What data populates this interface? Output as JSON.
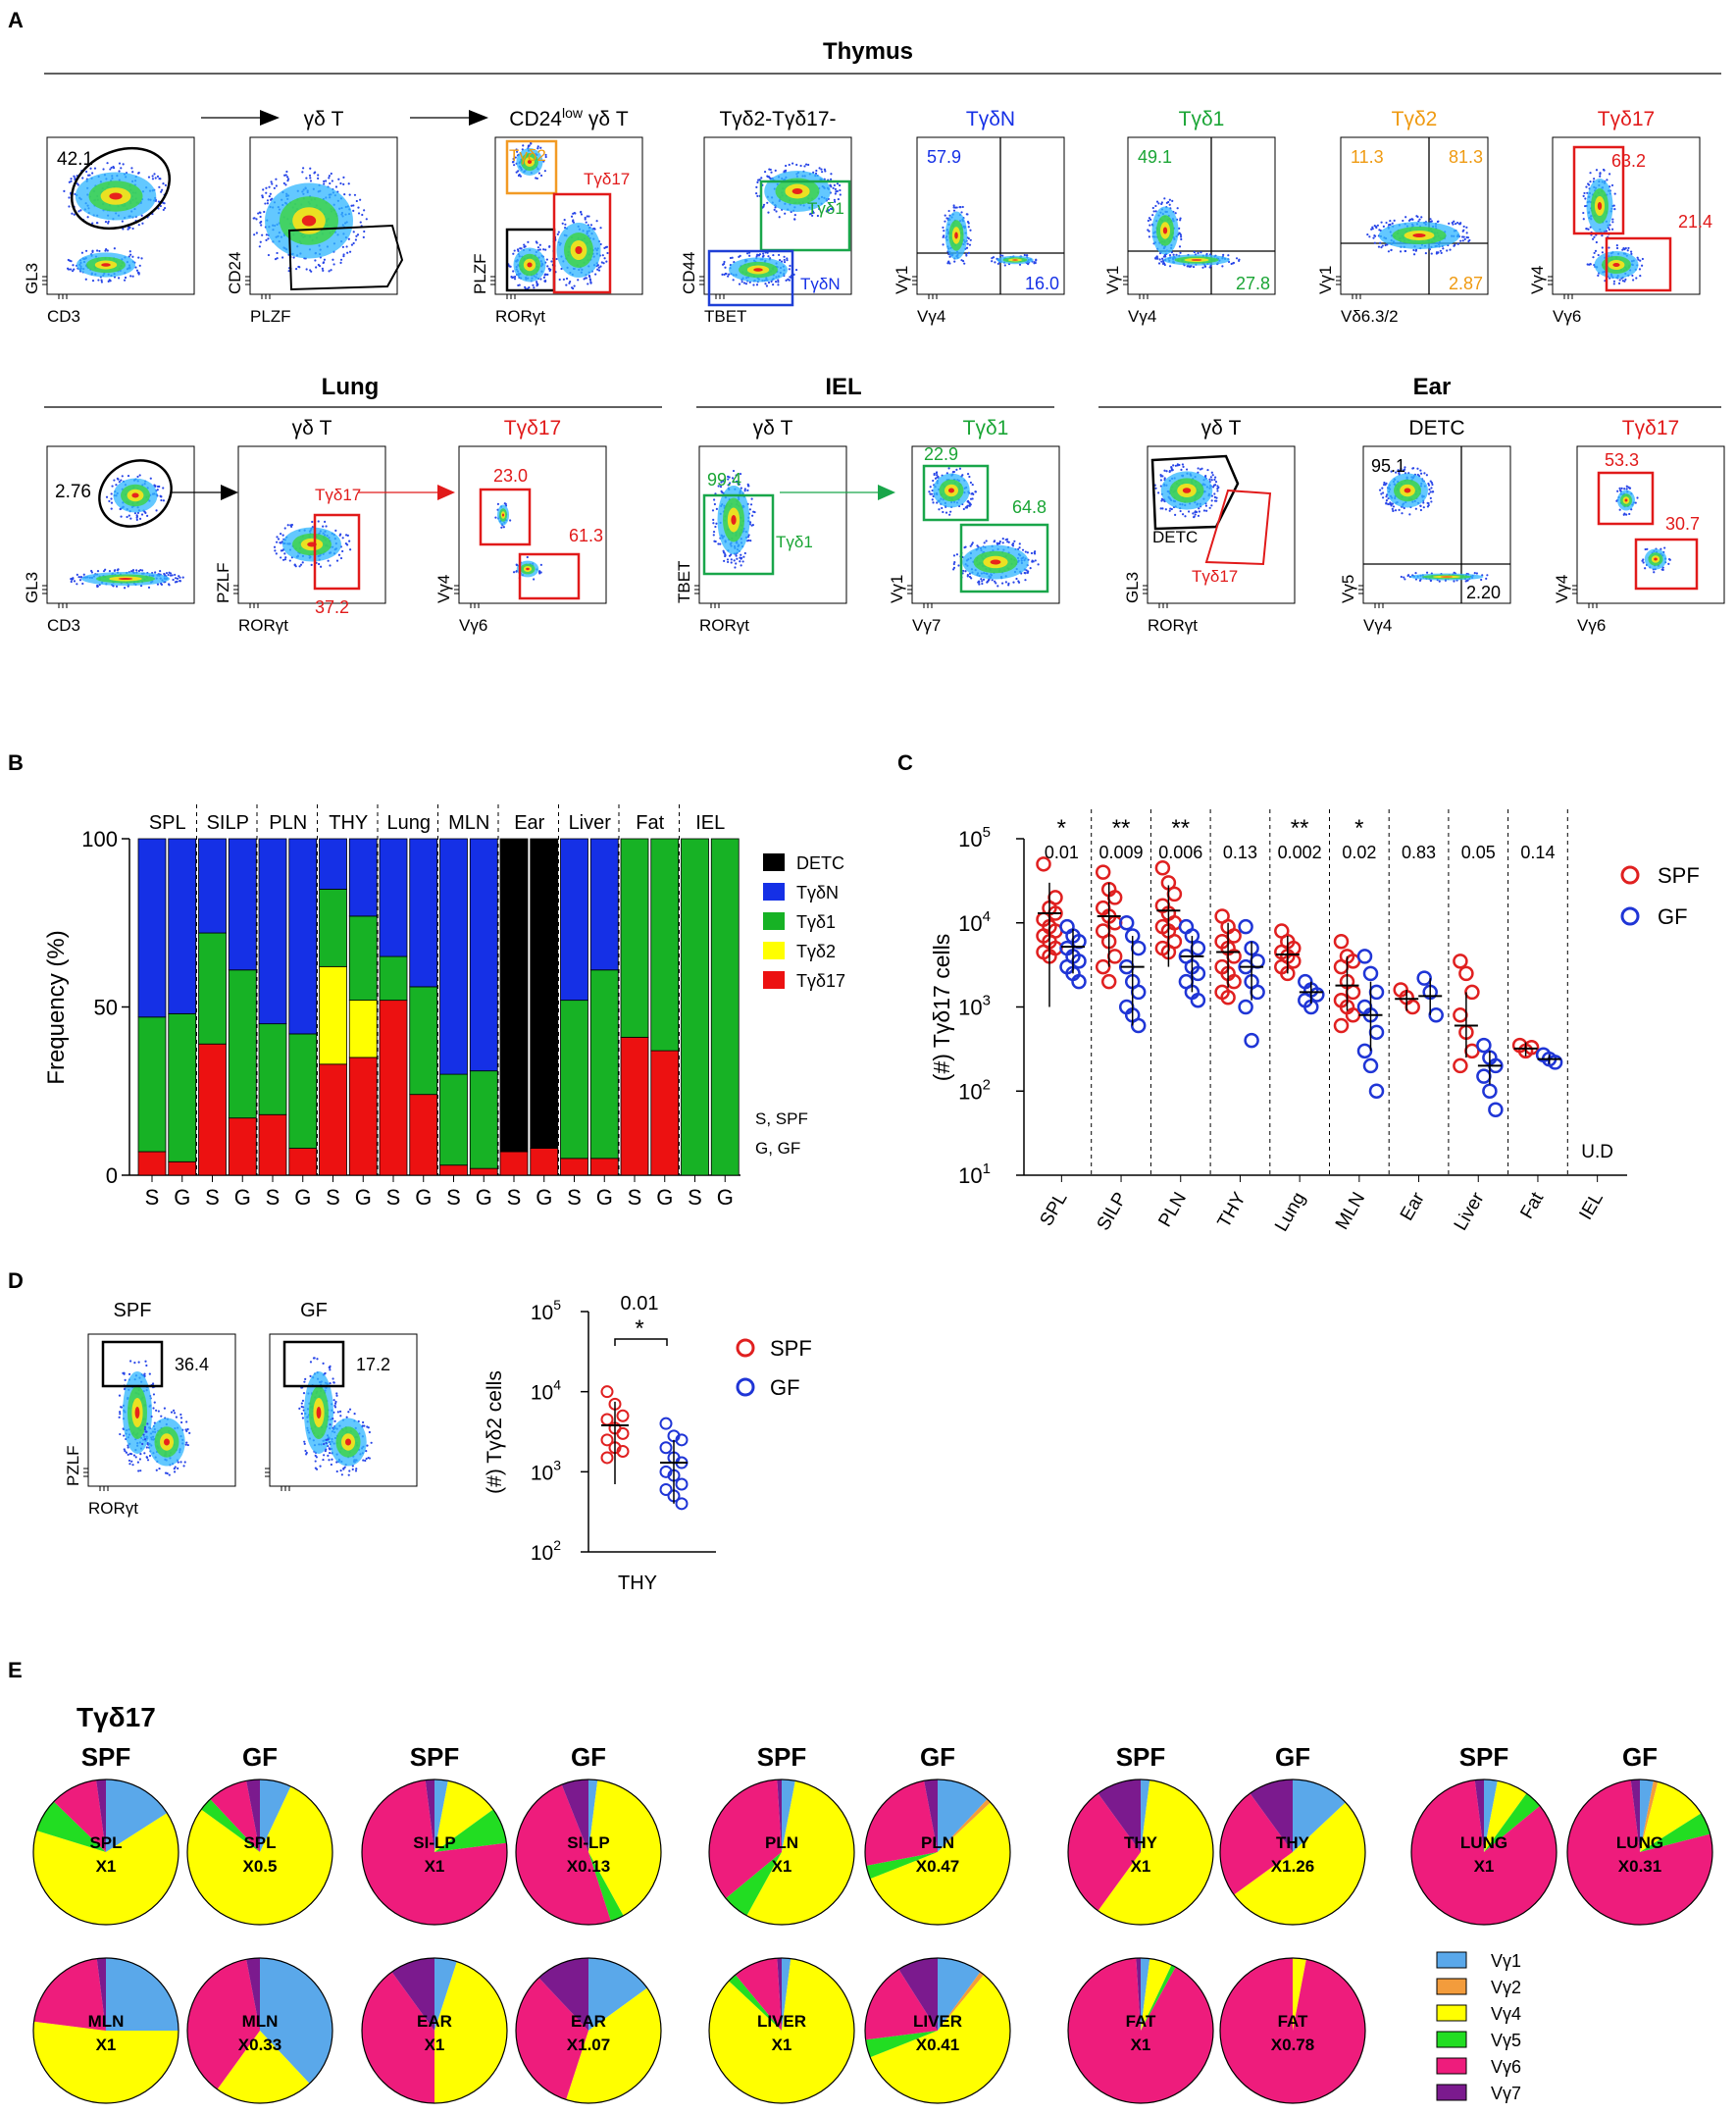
{
  "panel_letters": [
    "A",
    "B",
    "C",
    "D",
    "E"
  ],
  "colors": {
    "DETC": "#000000",
    "TgdN": "#1530e6",
    "Tgd1": "#17b225",
    "Tgd2": "#ffff00",
    "Tgd17": "#ec1111",
    "label_blue": "#1530e6",
    "label_green": "#1aa535",
    "label_orange": "#ef9a11",
    "label_red": "#e11a1a",
    "gate_orange": "#f29a24",
    "gate_green": "#19a64a",
    "gate_blue": "#1f3fd6",
    "SPF": "#e02020",
    "GF": "#1f35d6",
    "Vg1": "#5aa8ea",
    "Vg2": "#f39c3c",
    "Vg4": "#ffff00",
    "Vg5": "#22dd22",
    "Vg6": "#ee1c7c",
    "Vg7": "#7b1a8e"
  },
  "panel_a": {
    "sections": {
      "thymus": "Thymus",
      "lung": "Lung",
      "iel": "IEL",
      "ear": "Ear"
    },
    "thymus_plots": [
      {
        "title": "",
        "xlabel": "CD3",
        "ylabel": "GL3",
        "values": [
          "42.1"
        ]
      },
      {
        "title": "γδ T",
        "xlabel": "PLZF",
        "ylabel": "CD24",
        "values": []
      },
      {
        "title_main": "CD24",
        "title_sup": "low",
        "title_rest": " γδ T",
        "xlabel": "RORγt",
        "ylabel": "PLZF",
        "gates": [
          "Tγδ2",
          "Tγδ17"
        ]
      },
      {
        "title": "Tγδ2-Tγδ17-",
        "xlabel": "TBET",
        "ylabel": "CD44",
        "gates": [
          "Tγδ1",
          "TγδN"
        ]
      },
      {
        "title": "TγδN",
        "xlabel": "Vγ4",
        "ylabel": "Vγ1",
        "values": [
          "57.9",
          "16.0"
        ]
      },
      {
        "title": "Tγδ1",
        "xlabel": "Vγ4",
        "ylabel": "Vγ1",
        "values": [
          "49.1",
          "27.8"
        ]
      },
      {
        "title": "Tγδ2",
        "xlabel": "Vδ6.3/2",
        "ylabel": "Vγ1",
        "values": [
          "11.3",
          "81.3",
          "2.87"
        ]
      },
      {
        "title": "Tγδ17",
        "xlabel": "Vγ6",
        "ylabel": "Vγ4",
        "values": [
          "63.2",
          "21.4"
        ]
      }
    ],
    "bottom_plots": [
      {
        "title": "",
        "xlabel": "CD3",
        "ylabel": "GL3",
        "values": [
          "2.76"
        ]
      },
      {
        "title": "γδ T",
        "xlabel": "RORγt",
        "ylabel": "PZLF",
        "gate": "Tγδ17",
        "values": [
          "37.2"
        ]
      },
      {
        "title": "Tγδ17",
        "xlabel": "Vγ6",
        "ylabel": "Vγ4",
        "values": [
          "23.0",
          "61.3"
        ]
      },
      {
        "title": "γδ T",
        "xlabel": "RORγt",
        "ylabel": "TBET",
        "gate": "Tγδ1",
        "values": [
          "99.4"
        ]
      },
      {
        "title": "Tγδ1",
        "xlabel": "Vγ7",
        "ylabel": "Vγ1",
        "values": [
          "22.9",
          "64.8"
        ]
      },
      {
        "title": "γδ T",
        "xlabel": "RORγt",
        "ylabel": "GL3",
        "gates": [
          "DETC",
          "Tγδ17"
        ]
      },
      {
        "title": "DETC",
        "xlabel": "Vγ4",
        "ylabel": "Vγ5",
        "values": [
          "95.1",
          "2.20"
        ]
      },
      {
        "title": "Tγδ17",
        "xlabel": "Vγ6",
        "ylabel": "Vγ4",
        "values": [
          "53.3",
          "30.7"
        ]
      }
    ]
  },
  "panel_d_flow": {
    "plots": [
      {
        "title": "SPF",
        "value": "36.4"
      },
      {
        "title": "GF",
        "value": "17.2"
      }
    ],
    "xlabel": "RORγt",
    "ylabel": "PZLF"
  },
  "chart_data": [
    {
      "panel": "B",
      "type": "bar",
      "stacked": true,
      "ylabel": "Frequency (%)",
      "ylim": [
        0,
        100
      ],
      "yticks": [
        "0",
        "50",
        "100"
      ],
      "tissues": [
        "SPL",
        "SILP",
        "PLN",
        "THY",
        "Lung",
        "MLN",
        "Ear",
        "Liver",
        "Fat",
        "IEL"
      ],
      "categories": [
        "S",
        "G",
        "S",
        "G",
        "S",
        "G",
        "S",
        "G",
        "S",
        "G",
        "S",
        "G",
        "S",
        "G",
        "S",
        "G",
        "S",
        "G",
        "S",
        "G"
      ],
      "legend": [
        "DETC",
        "TγδN",
        "Tγδ1",
        "Tγδ2",
        "Tγδ17"
      ],
      "note": [
        "S, SPF",
        "G, GF"
      ],
      "series": [
        {
          "name": "Tγδ17",
          "values": [
            7,
            4,
            39,
            17,
            18,
            8,
            33,
            35,
            52,
            24,
            3,
            2,
            7,
            8,
            5,
            5,
            41,
            37,
            0,
            0
          ]
        },
        {
          "name": "Tγδ2",
          "values": [
            0,
            0,
            0,
            0,
            0,
            0,
            29,
            17,
            0,
            0,
            0,
            0,
            0,
            0,
            0,
            0,
            0,
            0,
            0,
            0
          ]
        },
        {
          "name": "Tγδ1",
          "values": [
            40,
            44,
            33,
            44,
            27,
            34,
            23,
            25,
            13,
            32,
            27,
            29,
            0,
            0,
            47,
            56,
            59,
            63,
            100,
            100
          ]
        },
        {
          "name": "TγδN",
          "values": [
            53,
            52,
            28,
            39,
            55,
            58,
            15,
            23,
            35,
            44,
            70,
            69,
            0,
            0,
            48,
            39,
            0,
            0,
            0,
            0
          ]
        },
        {
          "name": "DETC",
          "values": [
            0,
            0,
            0,
            0,
            0,
            0,
            0,
            0,
            0,
            0,
            0,
            0,
            93,
            92,
            0,
            0,
            0,
            0,
            0,
            0
          ]
        }
      ]
    },
    {
      "panel": "C",
      "type": "scatter",
      "yscale": "log",
      "ylabel_main": "(#) Tγδ17 cells",
      "ylim": [
        10,
        100000
      ],
      "yticks_base": "10",
      "yticks_exp": [
        "1",
        "2",
        "3",
        "4",
        "5"
      ],
      "categories": [
        "SPL",
        "SILP",
        "PLN",
        "THY",
        "Lung",
        "MLN",
        "Ear",
        "Liver",
        "Fat",
        "IEL"
      ],
      "pvalues": [
        "0.01",
        "0.009",
        "0.006",
        "0.13",
        "0.002",
        "0.02",
        "0.83",
        "0.05",
        "0.14",
        ""
      ],
      "stars": [
        "*",
        "**",
        "**",
        "",
        "**",
        "*",
        "",
        "",
        "",
        ""
      ],
      "undetected_label": "U.D",
      "legend": [
        "SPF",
        "GF"
      ],
      "series": [
        {
          "name": "SPF",
          "groups": [
            {
              "points": [
                50000,
                15000,
                13000,
                11000,
                9000,
                8000,
                7000,
                6000,
                5000,
                4500,
                4000,
                20000
              ],
              "mean": 13000,
              "err": [
                1000,
                30000
              ]
            },
            {
              "points": [
                40000,
                25000,
                20000,
                15000,
                12000,
                10000,
                8000,
                6000,
                4000,
                3000,
                2000
              ],
              "mean": 12000,
              "err": [
                3000,
                30000
              ]
            },
            {
              "points": [
                45000,
                30000,
                22000,
                16000,
                13000,
                10000,
                9000,
                8000,
                6000,
                5000,
                4500
              ],
              "mean": 14000,
              "err": [
                3000,
                28000
              ]
            },
            {
              "points": [
                12000,
                9000,
                7000,
                6000,
                5000,
                4000,
                3000,
                2500,
                2000,
                1500,
                1300
              ],
              "mean": 4500,
              "err": [
                1700,
                10000
              ]
            },
            {
              "points": [
                8000,
                6000,
                5000,
                4500,
                4000,
                3500,
                3000,
                2500
              ],
              "mean": 4200,
              "err": [
                2500,
                7000
              ]
            },
            {
              "points": [
                6000,
                4000,
                3500,
                3000,
                2000,
                1500,
                1200,
                1000,
                800,
                600
              ],
              "mean": 1800,
              "err": [
                900,
                4000
              ]
            },
            {
              "points": [
                1600,
                1300,
                1000
              ],
              "mean": 1250,
              "err": [
                900,
                1600
              ]
            },
            {
              "points": [
                3500,
                2500,
                1500,
                800,
                500,
                300,
                200
              ],
              "mean": 600,
              "err": [
                250,
                1500
              ]
            },
            {
              "points": [
                350,
                300,
                330
              ],
              "mean": 320,
              "err": [
                260,
                380
              ]
            }
          ]
        },
        {
          "name": "GF",
          "groups": [
            {
              "points": [
                9000,
                7000,
                6000,
                5000,
                4000,
                3500,
                3000,
                2500,
                2000
              ],
              "mean": 5200,
              "err": [
                2500,
                8500
              ]
            },
            {
              "points": [
                10000,
                7000,
                5000,
                3000,
                2000,
                1500,
                1000,
                800,
                600
              ],
              "mean": 3000,
              "err": [
                600,
                7000
              ]
            },
            {
              "points": [
                9000,
                7000,
                5000,
                4000,
                3000,
                2500,
                2000,
                1500,
                1200
              ],
              "mean": 4000,
              "err": [
                1500,
                7000
              ]
            },
            {
              "points": [
                9000,
                5000,
                3500,
                3000,
                2000,
                1500,
                1000,
                400
              ],
              "mean": 3000,
              "err": [
                1200,
                6000
              ]
            },
            {
              "points": [
                2000,
                1600,
                1400,
                1200,
                1000
              ],
              "mean": 1500,
              "err": [
                1100,
                2000
              ]
            },
            {
              "points": [
                4000,
                2500,
                1500,
                1000,
                800,
                500,
                300,
                200,
                100
              ],
              "mean": 800,
              "err": [
                300,
                2000
              ]
            },
            {
              "points": [
                2200,
                1500,
                800
              ],
              "mean": 1350,
              "err": [
                800,
                2200
              ]
            },
            {
              "points": [
                350,
                250,
                200,
                150,
                100,
                60
              ],
              "mean": 200,
              "err": [
                120,
                300
              ]
            },
            {
              "points": [
                270,
                240,
                220
              ],
              "mean": 240,
              "err": [
                210,
                270
              ]
            }
          ]
        }
      ]
    },
    {
      "panel": "D",
      "type": "scatter",
      "yscale": "log",
      "ylabel_main": "(#) Tγδ2 cells",
      "ylim": [
        100,
        100000
      ],
      "yticks_base": "10",
      "yticks_exp": [
        "2",
        "3",
        "4",
        "5"
      ],
      "categories": [
        "THY"
      ],
      "pvalue": "0.01",
      "stars": "*",
      "legend": [
        "SPF",
        "GF"
      ],
      "series": [
        {
          "name": "SPF",
          "points": [
            10000,
            7000,
            5000,
            4500,
            3500,
            3000,
            2500,
            2000,
            1800,
            1500
          ],
          "mean": 3800,
          "err": [
            700,
            7500
          ]
        },
        {
          "name": "GF",
          "points": [
            4000,
            2800,
            2500,
            2000,
            1500,
            1300,
            1000,
            900,
            700,
            600,
            500,
            400
          ],
          "mean": 1300,
          "err": [
            400,
            2500
          ]
        }
      ]
    },
    {
      "panel": "E",
      "type": "pie",
      "title": "Tγδ17",
      "labels": [
        "Vγ1",
        "Vγ2",
        "Vγ4",
        "Vγ5",
        "Vγ6",
        "Vγ7"
      ],
      "pies": [
        {
          "group": "SPF",
          "tissue": "SPL",
          "scale": "X1",
          "values": [
            15,
            0,
            60,
            7,
            10,
            2
          ]
        },
        {
          "group": "GF",
          "tissue": "SPL",
          "scale": "X0.5",
          "values": [
            7,
            0,
            78,
            3,
            9,
            3
          ]
        },
        {
          "group": "SPF",
          "tissue": "SI-LP",
          "scale": "X1",
          "values": [
            3,
            0,
            12,
            8,
            75,
            2
          ]
        },
        {
          "group": "GF",
          "tissue": "SI-LP",
          "scale": "X0.13",
          "values": [
            2,
            0,
            40,
            3,
            49,
            6
          ]
        },
        {
          "group": "SPF",
          "tissue": "PLN",
          "scale": "X1",
          "values": [
            3,
            0,
            55,
            6,
            35,
            1
          ]
        },
        {
          "group": "GF",
          "tissue": "PLN",
          "scale": "X0.47",
          "values": [
            12,
            1,
            56,
            3,
            25,
            3
          ]
        },
        {
          "group": "SPF",
          "tissue": "THY",
          "scale": "X1",
          "values": [
            2,
            0,
            58,
            0,
            30,
            10
          ]
        },
        {
          "group": "GF",
          "tissue": "THY",
          "scale": "X1.26",
          "values": [
            13,
            0,
            52,
            0,
            25,
            10
          ]
        },
        {
          "group": "SPF",
          "tissue": "LUNG",
          "scale": "X1",
          "values": [
            3,
            0,
            7,
            4,
            84,
            2
          ]
        },
        {
          "group": "GF",
          "tissue": "LUNG",
          "scale": "X0.31",
          "values": [
            3,
            1,
            12,
            5,
            77,
            2
          ]
        },
        {
          "group": "SPF",
          "tissue": "MLN",
          "scale": "X1",
          "values": [
            25,
            0,
            52,
            0,
            21,
            2
          ]
        },
        {
          "group": "GF",
          "tissue": "MLN",
          "scale": "X0.33",
          "values": [
            38,
            0,
            22,
            0,
            37,
            3
          ]
        },
        {
          "group": "SPF",
          "tissue": "EAR",
          "scale": "X1",
          "values": [
            5,
            0,
            45,
            0,
            40,
            10
          ]
        },
        {
          "group": "GF",
          "tissue": "EAR",
          "scale": "X1.07",
          "values": [
            15,
            0,
            40,
            0,
            33,
            12
          ]
        },
        {
          "group": "SPF",
          "tissue": "LIVER",
          "scale": "X1",
          "values": [
            2,
            0,
            85,
            2,
            10,
            1
          ]
        },
        {
          "group": "GF",
          "tissue": "LIVER",
          "scale": "X0.41",
          "values": [
            10,
            1,
            58,
            4,
            18,
            9
          ]
        },
        {
          "group": "SPF",
          "tissue": "FAT",
          "scale": "X1",
          "values": [
            2,
            0,
            5,
            1,
            91,
            1
          ]
        },
        {
          "group": "GF",
          "tissue": "FAT",
          "scale": "X0.78",
          "values": [
            0,
            0,
            3,
            0,
            97,
            0
          ]
        }
      ]
    }
  ]
}
